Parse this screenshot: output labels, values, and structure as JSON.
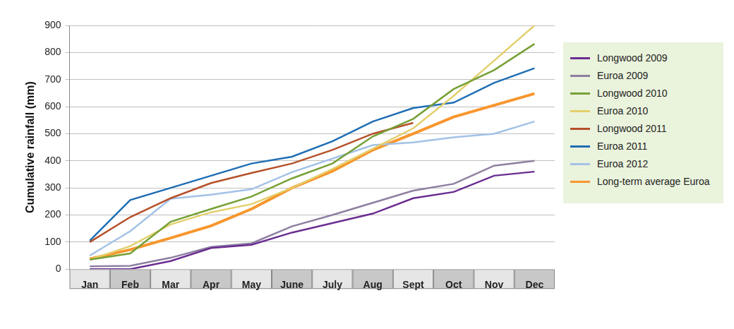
{
  "chart_data": {
    "type": "line",
    "y_label": "Cumulative rainfall (mm)",
    "categories": [
      "Jan",
      "Feb",
      "Mar",
      "Apr",
      "May",
      "June",
      "July",
      "Aug",
      "Sept",
      "Oct",
      "Nov",
      "Dec"
    ],
    "ylim": [
      0,
      900
    ],
    "yticks": [
      0,
      100,
      200,
      300,
      400,
      500,
      600,
      700,
      800,
      900
    ],
    "grid": true,
    "legend": "right",
    "series": [
      {
        "name": "Longwood 2009",
        "color": "#6a2d91",
        "values": [
          0,
          0,
          30,
          78,
          90,
          135,
          170,
          205,
          262,
          285,
          345,
          360
        ]
      },
      {
        "name": "Euroa 2009",
        "color": "#8e7fa0",
        "values": [
          10,
          12,
          42,
          82,
          95,
          158,
          200,
          245,
          290,
          315,
          382,
          400
        ]
      },
      {
        "name": "Longwood 2010",
        "color": "#76a035",
        "values": [
          35,
          58,
          175,
          222,
          268,
          335,
          390,
          490,
          555,
          665,
          735,
          832
        ]
      },
      {
        "name": "Euroa 2010",
        "color": "#e3cf6c",
        "values": [
          35,
          85,
          165,
          210,
          240,
          300,
          370,
          445,
          520,
          640,
          770,
          900
        ]
      },
      {
        "name": "Longwood 2011",
        "color": "#b5502a",
        "values": [
          100,
          192,
          262,
          318,
          355,
          390,
          440,
          500,
          540,
          null,
          null,
          null
        ]
      },
      {
        "name": "Euroa 2011",
        "color": "#1f6eb4",
        "values": [
          105,
          255,
          300,
          345,
          390,
          415,
          472,
          545,
          595,
          615,
          688,
          742
        ]
      },
      {
        "name": "Euroa 2012",
        "color": "#a3c2e6",
        "values": [
          50,
          140,
          260,
          275,
          295,
          358,
          408,
          458,
          468,
          487,
          500,
          545
        ]
      },
      {
        "name": "Long-term average Euroa",
        "color": "#f7962d",
        "values": [
          38,
          72,
          115,
          160,
          222,
          300,
          362,
          440,
          500,
          562,
          605,
          648
        ]
      }
    ]
  }
}
